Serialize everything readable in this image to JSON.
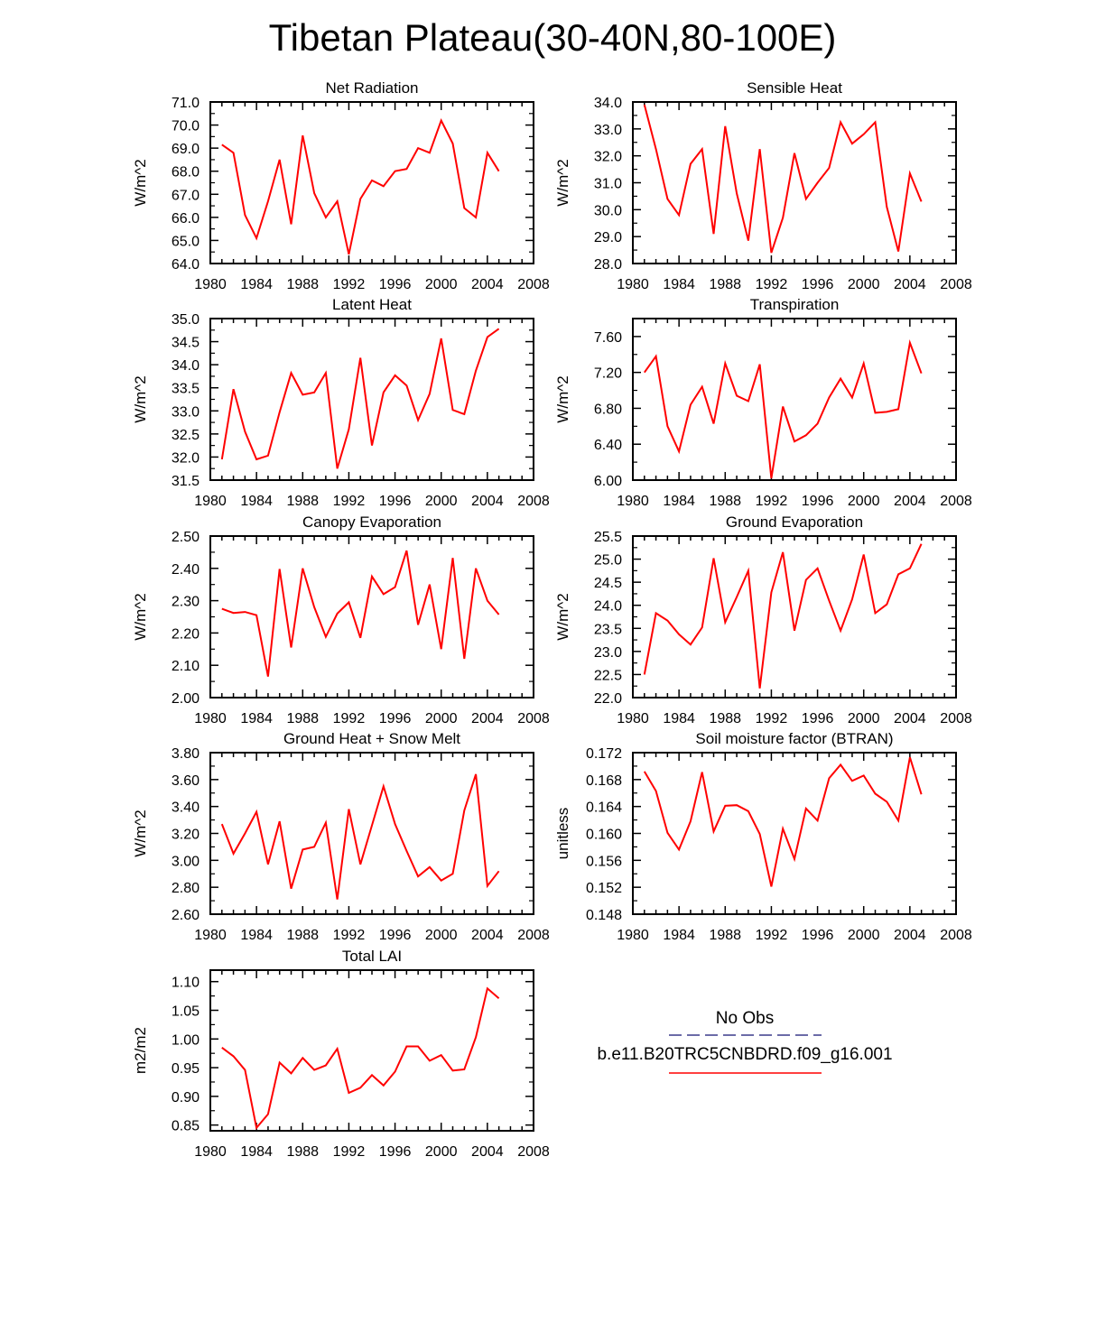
{
  "title": "Tibetan Plateau(30-40N,80-100E)",
  "colors": {
    "series": "#ff0000",
    "axis": "#000000",
    "obs": "#3a3a8a"
  },
  "legend": {
    "obs_label": "No Obs",
    "model_label": "b.e11.B20TRC5CNBDRD.f09_g16.001"
  },
  "chart_data": [
    {
      "type": "line",
      "title": "Net Radiation",
      "ylabel": "W/m^2",
      "xlim": [
        1980,
        2008
      ],
      "ylim": [
        64.0,
        71.0
      ],
      "xticks": [
        "1980",
        "1984",
        "1988",
        "1992",
        "1996",
        "2000",
        "2004",
        "2008"
      ],
      "yticks": [
        "64.0",
        "65.0",
        "66.0",
        "67.0",
        "68.0",
        "69.0",
        "70.0",
        "71.0"
      ],
      "x": [
        1981,
        1982,
        1983,
        1984,
        1985,
        1986,
        1987,
        1988,
        1989,
        1990,
        1991,
        1992,
        1993,
        1994,
        1995,
        1996,
        1997,
        1998,
        1999,
        2000,
        2001,
        2002,
        2003,
        2004,
        2005
      ],
      "series": [
        {
          "name": "b.e11.B20TRC5CNBDRD.f09_g16.001",
          "values": [
            69.15,
            68.8,
            66.1,
            65.1,
            66.7,
            68.5,
            65.7,
            69.55,
            67.05,
            66.0,
            66.7,
            64.4,
            66.8,
            67.6,
            67.35,
            68.0,
            68.1,
            69.0,
            68.8,
            70.2,
            69.2,
            66.4,
            66.0,
            68.8,
            68.0
          ]
        }
      ]
    },
    {
      "type": "line",
      "title": "Sensible Heat",
      "ylabel": "W/m^2",
      "xlim": [
        1980,
        2008
      ],
      "ylim": [
        28.0,
        34.0
      ],
      "xticks": [
        "1980",
        "1984",
        "1988",
        "1992",
        "1996",
        "2000",
        "2004",
        "2008"
      ],
      "yticks": [
        "28.0",
        "29.0",
        "30.0",
        "31.0",
        "32.0",
        "33.0",
        "34.0"
      ],
      "x": [
        1981,
        1982,
        1983,
        1984,
        1985,
        1986,
        1987,
        1988,
        1989,
        1990,
        1991,
        1992,
        1993,
        1994,
        1995,
        1996,
        1997,
        1998,
        1999,
        2000,
        2001,
        2002,
        2003,
        2004,
        2005
      ],
      "series": [
        {
          "name": "b.e11.B20TRC5CNBDRD.f09_g16.001",
          "values": [
            33.9,
            32.25,
            30.4,
            29.8,
            31.7,
            32.25,
            29.1,
            33.1,
            30.6,
            28.85,
            32.25,
            28.4,
            29.7,
            32.1,
            30.4,
            31.0,
            31.55,
            33.25,
            32.45,
            32.8,
            33.25,
            30.1,
            28.45,
            31.35,
            30.3
          ]
        }
      ]
    },
    {
      "type": "line",
      "title": "Latent Heat",
      "ylabel": "W/m^2",
      "xlim": [
        1980,
        2008
      ],
      "ylim": [
        31.5,
        35.0
      ],
      "xticks": [
        "1980",
        "1984",
        "1988",
        "1992",
        "1996",
        "2000",
        "2004",
        "2008"
      ],
      "yticks": [
        "31.5",
        "32.0",
        "32.5",
        "33.0",
        "33.5",
        "34.0",
        "34.5",
        "35.0"
      ],
      "x": [
        1981,
        1982,
        1983,
        1984,
        1985,
        1986,
        1987,
        1988,
        1989,
        1990,
        1991,
        1992,
        1993,
        1994,
        1995,
        1996,
        1997,
        1998,
        1999,
        2000,
        2001,
        2002,
        2003,
        2004,
        2005
      ],
      "series": [
        {
          "name": "b.e11.B20TRC5CNBDRD.f09_g16.001",
          "values": [
            31.95,
            33.47,
            32.55,
            31.95,
            32.03,
            32.97,
            33.82,
            33.35,
            33.4,
            33.82,
            31.75,
            32.6,
            34.15,
            32.25,
            33.4,
            33.77,
            33.55,
            32.8,
            33.37,
            34.57,
            33.02,
            32.93,
            33.87,
            34.6,
            34.78
          ]
        }
      ]
    },
    {
      "type": "line",
      "title": "Transpiration",
      "ylabel": "W/m^2",
      "xlim": [
        1980,
        2008
      ],
      "ylim": [
        6.0,
        7.8
      ],
      "xticks": [
        "1980",
        "1984",
        "1988",
        "1992",
        "1996",
        "2000",
        "2004",
        "2008"
      ],
      "yticks": [
        "6.00",
        "6.40",
        "6.80",
        "7.20",
        "7.60"
      ],
      "ytick_values": [
        6.0,
        6.4,
        6.8,
        7.2,
        7.6
      ],
      "x": [
        1981,
        1982,
        1983,
        1984,
        1985,
        1986,
        1987,
        1988,
        1989,
        1990,
        1991,
        1992,
        1993,
        1994,
        1995,
        1996,
        1997,
        1998,
        1999,
        2000,
        2001,
        2002,
        2003,
        2004,
        2005
      ],
      "series": [
        {
          "name": "b.e11.B20TRC5CNBDRD.f09_g16.001",
          "values": [
            7.2,
            7.38,
            6.6,
            6.32,
            6.84,
            7.04,
            6.63,
            7.3,
            6.94,
            6.88,
            7.29,
            6.02,
            6.82,
            6.43,
            6.5,
            6.63,
            6.92,
            7.13,
            6.92,
            7.3,
            6.75,
            6.76,
            6.79,
            7.53,
            7.19
          ]
        }
      ]
    },
    {
      "type": "line",
      "title": "Canopy Evaporation",
      "ylabel": "W/m^2",
      "xlim": [
        1980,
        2008
      ],
      "ylim": [
        2.0,
        2.5
      ],
      "xticks": [
        "1980",
        "1984",
        "1988",
        "1992",
        "1996",
        "2000",
        "2004",
        "2008"
      ],
      "yticks": [
        "2.00",
        "2.10",
        "2.20",
        "2.30",
        "2.40",
        "2.50"
      ],
      "x": [
        1981,
        1982,
        1983,
        1984,
        1985,
        1986,
        1987,
        1988,
        1989,
        1990,
        1991,
        1992,
        1993,
        1994,
        1995,
        1996,
        1997,
        1998,
        1999,
        2000,
        2001,
        2002,
        2003,
        2004,
        2005
      ],
      "series": [
        {
          "name": "b.e11.B20TRC5CNBDRD.f09_g16.001",
          "values": [
            2.275,
            2.262,
            2.265,
            2.255,
            2.065,
            2.398,
            2.155,
            2.4,
            2.28,
            2.188,
            2.26,
            2.295,
            2.185,
            2.375,
            2.32,
            2.342,
            2.455,
            2.225,
            2.35,
            2.15,
            2.432,
            2.12,
            2.4,
            2.3,
            2.257
          ]
        }
      ]
    },
    {
      "type": "line",
      "title": "Ground Evaporation",
      "ylabel": "W/m^2",
      "xlim": [
        1980,
        2008
      ],
      "ylim": [
        22.0,
        25.5
      ],
      "xticks": [
        "1980",
        "1984",
        "1988",
        "1992",
        "1996",
        "2000",
        "2004",
        "2008"
      ],
      "yticks": [
        "22.0",
        "22.5",
        "23.0",
        "23.5",
        "24.0",
        "24.5",
        "25.0",
        "25.5"
      ],
      "x": [
        1981,
        1982,
        1983,
        1984,
        1985,
        1986,
        1987,
        1988,
        1989,
        1990,
        1991,
        1992,
        1993,
        1994,
        1995,
        1996,
        1997,
        1998,
        1999,
        2000,
        2001,
        2002,
        2003,
        2004,
        2005
      ],
      "series": [
        {
          "name": "b.e11.B20TRC5CNBDRD.f09_g16.001",
          "values": [
            22.5,
            23.83,
            23.67,
            23.37,
            23.15,
            23.52,
            25.02,
            23.63,
            24.18,
            24.75,
            22.2,
            24.28,
            25.15,
            23.45,
            24.55,
            24.8,
            24.1,
            23.45,
            24.13,
            25.1,
            23.83,
            24.02,
            24.67,
            24.8,
            25.33
          ]
        }
      ]
    },
    {
      "type": "line",
      "title": "Ground Heat + Snow Melt",
      "ylabel": "W/m^2",
      "xlim": [
        1980,
        2008
      ],
      "ylim": [
        2.6,
        3.8
      ],
      "xticks": [
        "1980",
        "1984",
        "1988",
        "1992",
        "1996",
        "2000",
        "2004",
        "2008"
      ],
      "yticks": [
        "2.60",
        "2.80",
        "3.00",
        "3.20",
        "3.40",
        "3.60",
        "3.80"
      ],
      "x": [
        1981,
        1982,
        1983,
        1984,
        1985,
        1986,
        1987,
        1988,
        1989,
        1990,
        1991,
        1992,
        1993,
        1994,
        1995,
        1996,
        1997,
        1998,
        1999,
        2000,
        2001,
        2002,
        2003,
        2004,
        2005
      ],
      "series": [
        {
          "name": "b.e11.B20TRC5CNBDRD.f09_g16.001",
          "values": [
            3.27,
            3.05,
            3.2,
            3.36,
            2.97,
            3.29,
            2.79,
            3.08,
            3.1,
            3.28,
            2.71,
            3.38,
            2.97,
            3.26,
            3.55,
            3.27,
            3.07,
            2.88,
            2.95,
            2.85,
            2.9,
            3.37,
            3.64,
            2.81,
            2.92
          ]
        }
      ]
    },
    {
      "type": "line",
      "title": "Soil moisture factor (BTRAN)",
      "ylabel": "unitless",
      "xlim": [
        1980,
        2008
      ],
      "ylim": [
        0.148,
        0.172
      ],
      "xticks": [
        "1980",
        "1984",
        "1988",
        "1992",
        "1996",
        "2000",
        "2004",
        "2008"
      ],
      "yticks": [
        "0.148",
        "0.152",
        "0.156",
        "0.160",
        "0.164",
        "0.168",
        "0.172"
      ],
      "x": [
        1981,
        1982,
        1983,
        1984,
        1985,
        1986,
        1987,
        1988,
        1989,
        1990,
        1991,
        1992,
        1993,
        1994,
        1995,
        1996,
        1997,
        1998,
        1999,
        2000,
        2001,
        2002,
        2003,
        2004,
        2005
      ],
      "series": [
        {
          "name": "b.e11.B20TRC5CNBDRD.f09_g16.001",
          "values": [
            0.1692,
            0.1663,
            0.1601,
            0.1576,
            0.1618,
            0.1691,
            0.1603,
            0.1641,
            0.1642,
            0.1633,
            0.1599,
            0.1521,
            0.1607,
            0.1562,
            0.1637,
            0.1619,
            0.1682,
            0.1702,
            0.1678,
            0.1686,
            0.1659,
            0.1647,
            0.1619,
            0.1713,
            0.1658
          ]
        }
      ]
    },
    {
      "type": "line",
      "title": "Total LAI",
      "ylabel": "m2/m2",
      "xlim": [
        1980,
        2008
      ],
      "ylim": [
        0.84,
        1.12
      ],
      "xticks": [
        "1980",
        "1984",
        "1988",
        "1992",
        "1996",
        "2000",
        "2004",
        "2008"
      ],
      "yticks": [
        "0.85",
        "0.90",
        "0.95",
        "1.00",
        "1.05",
        "1.10"
      ],
      "ytick_values": [
        0.85,
        0.9,
        0.95,
        1.0,
        1.05,
        1.1
      ],
      "x": [
        1981,
        1982,
        1983,
        1984,
        1985,
        1986,
        1987,
        1988,
        1989,
        1990,
        1991,
        1992,
        1993,
        1994,
        1995,
        1996,
        1997,
        1998,
        1999,
        2000,
        2001,
        2002,
        2003,
        2004,
        2005
      ],
      "series": [
        {
          "name": "b.e11.B20TRC5CNBDRD.f09_g16.001",
          "values": [
            0.985,
            0.97,
            0.946,
            0.845,
            0.869,
            0.959,
            0.94,
            0.967,
            0.946,
            0.954,
            0.983,
            0.906,
            0.915,
            0.937,
            0.919,
            0.943,
            0.987,
            0.987,
            0.962,
            0.972,
            0.945,
            0.947,
            1.003,
            1.088,
            1.071
          ]
        }
      ]
    }
  ]
}
